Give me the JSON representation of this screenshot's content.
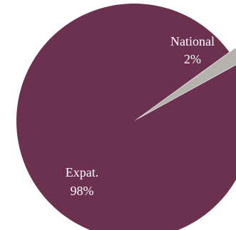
{
  "chart_data": {
    "type": "pie",
    "categories": [
      "National",
      "Expat."
    ],
    "values": [
      2,
      98
    ],
    "value_labels": [
      "2%",
      "98%"
    ],
    "colors": [
      "#b4b2ad",
      "#6d3150"
    ],
    "exploded": "National",
    "title": "",
    "legend": "none"
  }
}
